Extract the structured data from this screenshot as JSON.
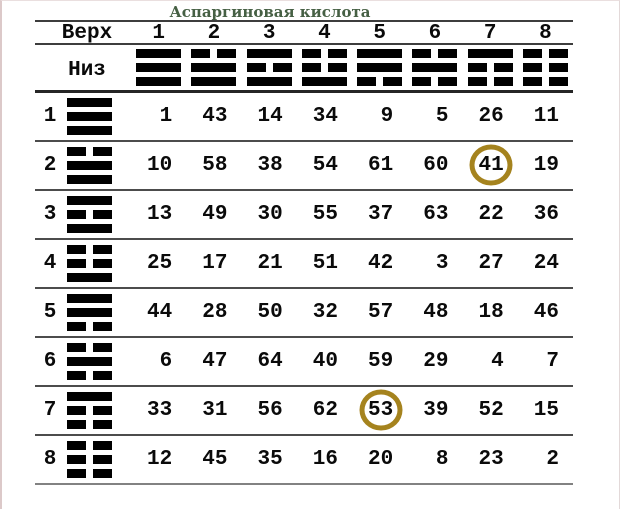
{
  "title": "Аспаргиновая кислота",
  "table": {
    "top_label": "Верх",
    "bottom_label": "Низ",
    "column_numbers": [
      "1",
      "2",
      "3",
      "4",
      "5",
      "6",
      "7",
      "8"
    ],
    "top_trigram_names": [
      "heaven",
      "lake",
      "fire",
      "thunder",
      "wind",
      "water",
      "mountain",
      "earth"
    ],
    "top_trigrams": [
      [
        "solid",
        "solid",
        "solid"
      ],
      [
        "broken",
        "solid",
        "solid"
      ],
      [
        "solid",
        "broken",
        "solid"
      ],
      [
        "broken",
        "broken",
        "solid"
      ],
      [
        "solid",
        "solid",
        "broken"
      ],
      [
        "broken",
        "solid",
        "broken"
      ],
      [
        "solid",
        "broken",
        "broken"
      ],
      [
        "broken",
        "broken",
        "broken"
      ]
    ],
    "rows": [
      {
        "label": "1",
        "trigram_name": "heaven",
        "trigram": [
          "solid",
          "solid",
          "solid"
        ],
        "values": [
          1,
          43,
          14,
          34,
          9,
          5,
          26,
          11
        ]
      },
      {
        "label": "2",
        "trigram_name": "lake",
        "trigram": [
          "broken",
          "solid",
          "solid"
        ],
        "values": [
          10,
          58,
          38,
          54,
          61,
          60,
          41,
          19
        ]
      },
      {
        "label": "3",
        "trigram_name": "fire",
        "trigram": [
          "solid",
          "broken",
          "solid"
        ],
        "values": [
          13,
          49,
          30,
          55,
          37,
          63,
          22,
          36
        ]
      },
      {
        "label": "4",
        "trigram_name": "thunder",
        "trigram": [
          "broken",
          "broken",
          "solid"
        ],
        "values": [
          25,
          17,
          21,
          51,
          42,
          3,
          27,
          24
        ]
      },
      {
        "label": "5",
        "trigram_name": "wind",
        "trigram": [
          "solid",
          "solid",
          "broken"
        ],
        "values": [
          44,
          28,
          50,
          32,
          57,
          48,
          18,
          46
        ]
      },
      {
        "label": "6",
        "trigram_name": "water",
        "trigram": [
          "broken",
          "solid",
          "broken"
        ],
        "values": [
          6,
          47,
          64,
          40,
          59,
          29,
          4,
          7
        ]
      },
      {
        "label": "7",
        "trigram_name": "mountain",
        "trigram": [
          "solid",
          "broken",
          "broken"
        ],
        "values": [
          33,
          31,
          56,
          62,
          53,
          39,
          52,
          15
        ]
      },
      {
        "label": "8",
        "trigram_name": "earth",
        "trigram": [
          "broken",
          "broken",
          "broken"
        ],
        "values": [
          12,
          45,
          35,
          16,
          20,
          8,
          23,
          2
        ]
      }
    ],
    "highlights": [
      {
        "row": 2,
        "col": 7,
        "value": 41
      },
      {
        "row": 7,
        "col": 5,
        "value": 53
      }
    ],
    "highlight_color": "#a5831e"
  }
}
